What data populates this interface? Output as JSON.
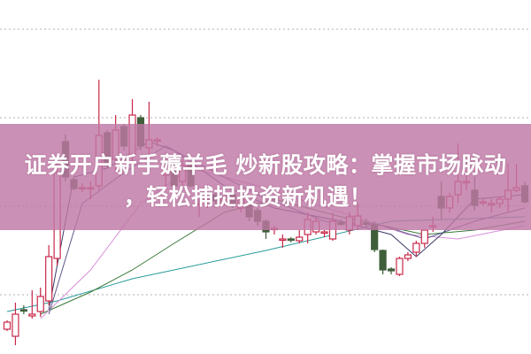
{
  "banner": {
    "title_line1": "证券开户新手薅羊毛 炒新股攻略：掌握市场脉动",
    "title_line2": "，轻松捕捉投资新机遇！",
    "background": "#c078a5"
  },
  "chart_data": {
    "type": "candlestick",
    "title": "",
    "xlabel": "",
    "ylabel": "",
    "ylim": [
      0,
      40
    ],
    "grid": true,
    "gridlines": [
      6.7,
      16.7,
      26.7,
      36.7
    ],
    "colors": {
      "up": "#c8284a",
      "down": "#3f5e3a",
      "grid": "#b0b0b0"
    },
    "candles": [
      [
        2.8,
        3.8,
        2.6,
        3.6
      ],
      [
        2.0,
        5.8,
        1.0,
        4.5
      ],
      [
        5.0,
        5.5,
        4.5,
        4.9
      ],
      [
        4.3,
        7.2,
        4.0,
        4.5
      ],
      [
        4.8,
        7.5,
        4.2,
        6.5
      ],
      [
        6.0,
        12.3,
        5.5,
        11.0
      ],
      [
        10.8,
        21.5,
        10.0,
        20.5
      ],
      [
        24.0,
        24.8,
        19.5,
        20.0
      ],
      [
        19.7,
        20.0,
        18.5,
        18.7
      ],
      [
        18.8,
        19.3,
        18.3,
        18.8
      ],
      [
        18.8,
        19.5,
        17.5,
        18.8
      ],
      [
        19.0,
        31.0,
        18.5,
        24.7
      ],
      [
        25.0,
        25.3,
        21.0,
        21.5
      ],
      [
        22.0,
        27.0,
        20.5,
        25.3
      ],
      [
        25.7,
        26.0,
        23.0,
        23.5
      ],
      [
        22.5,
        28.8,
        21.5,
        27.0
      ],
      [
        26.7,
        27.0,
        23.0,
        23.5
      ],
      [
        23.3,
        28.5,
        22.5,
        24.2
      ],
      [
        24.2,
        24.5,
        23.5,
        24.2
      ],
      [
        20.2,
        22.8,
        18.5,
        21.8
      ],
      [
        21.5,
        22.0,
        18.5,
        19.0
      ],
      [
        19.5,
        22.0,
        19.0,
        21.3
      ],
      [
        21.3,
        21.5,
        18.8,
        19.0
      ],
      [
        17.0,
        17.5,
        15.5,
        17.0
      ],
      [
        17.5,
        18.0,
        16.5,
        17.5
      ],
      [
        18.0,
        18.3,
        16.5,
        17.3
      ],
      [
        17.0,
        18.5,
        16.8,
        17.8
      ],
      [
        18.0,
        18.5,
        16.5,
        16.8
      ],
      [
        16.5,
        18.0,
        16.0,
        17.5
      ],
      [
        17.0,
        17.5,
        15.0,
        15.5
      ],
      [
        16.2,
        16.5,
        14.5,
        15.0
      ],
      [
        15.0,
        15.2,
        13.0,
        13.8
      ],
      [
        14.2,
        14.5,
        13.5,
        14.2
      ],
      [
        13.0,
        13.5,
        12.0,
        13.0
      ],
      [
        13.0,
        13.2,
        12.6,
        12.9
      ],
      [
        12.8,
        14.0,
        12.5,
        13.2
      ],
      [
        13.5,
        16.0,
        12.5,
        15.2
      ],
      [
        13.8,
        15.5,
        13.5,
        15.0
      ],
      [
        13.8,
        14.0,
        13.2,
        13.8
      ],
      [
        13.0,
        16.0,
        12.8,
        15.0
      ],
      [
        14.8,
        15.2,
        14.5,
        14.7
      ],
      [
        14.0,
        16.0,
        13.5,
        15.5
      ],
      [
        14.5,
        17.0,
        14.0,
        15.6
      ],
      [
        14.8,
        15.3,
        14.3,
        14.7
      ],
      [
        14.7,
        15.0,
        11.5,
        11.8
      ],
      [
        11.7,
        11.8,
        9.0,
        9.5
      ],
      [
        9.6,
        9.8,
        9.0,
        9.4
      ],
      [
        9.0,
        11.0,
        8.8,
        10.8
      ],
      [
        10.8,
        11.5,
        10.5,
        11.2
      ],
      [
        11.5,
        12.8,
        11.0,
        12.5
      ],
      [
        12.5,
        14.0,
        12.0,
        14.0
      ],
      [
        14.5,
        15.5,
        13.8,
        14.5
      ],
      [
        17.8,
        19.5,
        15.2,
        16.5
      ],
      [
        16.5,
        18.2,
        16.0,
        17.8
      ],
      [
        18.0,
        23.8,
        17.0,
        19.5
      ],
      [
        19.5,
        20.5,
        18.5,
        19.5
      ],
      [
        18.5,
        20.0,
        16.2,
        16.8
      ],
      [
        17.2,
        17.5,
        16.8,
        17.2
      ],
      [
        17.0,
        17.5,
        16.0,
        17.0
      ],
      [
        17.0,
        17.8,
        16.5,
        17.5
      ],
      [
        17.5,
        21.5,
        16.0,
        18.5
      ],
      [
        18.5,
        21.5,
        18.3,
        18.8
      ],
      [
        19.0,
        19.5,
        17.0,
        17.2
      ]
    ],
    "moving_averages": [
      {
        "color": "#2a9a9a",
        "points": [
          [
            0,
            4.8
          ],
          [
            6,
            6.0
          ],
          [
            15,
            8.5
          ],
          [
            31,
            11.7
          ],
          [
            46,
            15.0
          ],
          [
            62,
            15.5
          ]
        ]
      },
      {
        "color": "#3a7a3a",
        "points": [
          [
            4,
            4.5
          ],
          [
            10,
            7.0
          ],
          [
            15,
            9.5
          ],
          [
            20,
            12.5
          ],
          [
            26,
            16.0
          ],
          [
            32,
            17.5
          ],
          [
            40,
            15.5
          ],
          [
            50,
            13.5
          ],
          [
            56,
            14.0
          ],
          [
            62,
            15.0
          ]
        ]
      },
      {
        "color": "#d890d8",
        "points": [
          [
            4,
            4.0
          ],
          [
            10,
            9.5
          ],
          [
            16,
            17.0
          ],
          [
            22,
            21.0
          ],
          [
            30,
            19.0
          ],
          [
            40,
            16.0
          ],
          [
            48,
            13.5
          ],
          [
            54,
            13.0
          ],
          [
            62,
            14.5
          ]
        ]
      },
      {
        "color": "#3a3a6a",
        "points": [
          [
            5,
            5.0
          ],
          [
            8,
            20.0
          ],
          [
            12,
            21.0
          ],
          [
            17,
            24.0
          ],
          [
            20,
            23.0
          ],
          [
            26,
            19.0
          ],
          [
            32,
            16.5
          ],
          [
            40,
            15.0
          ],
          [
            46,
            13.5
          ],
          [
            49,
            11.0
          ],
          [
            52,
            13.5
          ],
          [
            56,
            17.5
          ],
          [
            62,
            18.0
          ]
        ]
      },
      {
        "color": "#5a5a8a",
        "points": [
          [
            5,
            4.5
          ],
          [
            9,
            17.0
          ],
          [
            14,
            20.5
          ],
          [
            19,
            23.5
          ],
          [
            24,
            21.0
          ],
          [
            30,
            18.0
          ],
          [
            38,
            15.0
          ],
          [
            45,
            14.5
          ],
          [
            50,
            13.0
          ],
          [
            56,
            15.0
          ],
          [
            62,
            16.5
          ]
        ]
      }
    ]
  }
}
